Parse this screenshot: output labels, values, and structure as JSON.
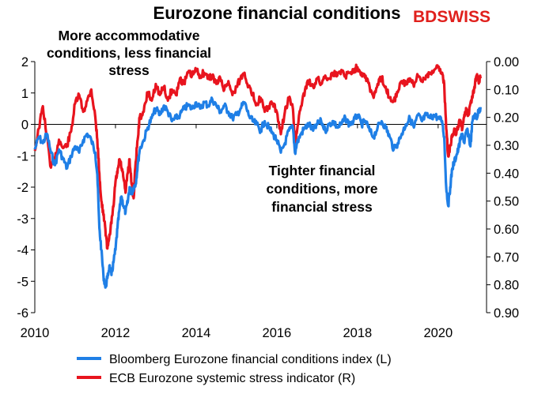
{
  "brand": {
    "logo_text": "BDSWISS",
    "logo_color": "#e0201c"
  },
  "chart_data": {
    "type": "line",
    "title": "Eurozone financial conditions",
    "annotations": [
      {
        "lines": [
          "More accommodative",
          "conditions, less financial",
          "stress"
        ]
      },
      {
        "lines": [
          "Tighter financial",
          "conditions, more",
          "financial stress"
        ]
      }
    ],
    "x_axis": {
      "range": [
        2010,
        2021.2
      ],
      "ticks": [
        "2010",
        "2012",
        "2014",
        "2016",
        "2018",
        "2020"
      ]
    },
    "y_left": {
      "range": [
        -6,
        2
      ],
      "ticks": [
        "2",
        "1",
        "0",
        "-1",
        "-2",
        "-3",
        "-4",
        "-5",
        "-6"
      ]
    },
    "y_right": {
      "range": [
        0.0,
        0.9
      ],
      "inverted": true,
      "ticks": [
        "0.00",
        "0.10",
        "0.20",
        "0.30",
        "0.40",
        "0.50",
        "0.60",
        "0.70",
        "0.80",
        "0.90"
      ]
    },
    "legend": {
      "placement": "bottom"
    },
    "series": [
      {
        "name": "Bloomberg Eurozone financial conditions index (L)",
        "axis": "left",
        "color": "#1f7fe6",
        "points": [
          [
            2010.0,
            -0.8
          ],
          [
            2010.1,
            -0.4
          ],
          [
            2010.2,
            -0.6
          ],
          [
            2010.3,
            -0.3
          ],
          [
            2010.4,
            -0.9
          ],
          [
            2010.5,
            -1.3
          ],
          [
            2010.6,
            -0.8
          ],
          [
            2010.7,
            -1.1
          ],
          [
            2010.8,
            -1.4
          ],
          [
            2010.9,
            -1.0
          ],
          [
            2011.0,
            -0.7
          ],
          [
            2011.1,
            -0.9
          ],
          [
            2011.2,
            -0.5
          ],
          [
            2011.3,
            -0.3
          ],
          [
            2011.4,
            -0.5
          ],
          [
            2011.5,
            -0.9
          ],
          [
            2011.55,
            -1.6
          ],
          [
            2011.6,
            -3.3
          ],
          [
            2011.65,
            -4.0
          ],
          [
            2011.7,
            -4.8
          ],
          [
            2011.75,
            -5.2
          ],
          [
            2011.8,
            -4.9
          ],
          [
            2011.85,
            -4.5
          ],
          [
            2011.9,
            -4.8
          ],
          [
            2011.95,
            -4.4
          ],
          [
            2012.0,
            -4.0
          ],
          [
            2012.05,
            -3.3
          ],
          [
            2012.1,
            -2.7
          ],
          [
            2012.15,
            -2.3
          ],
          [
            2012.2,
            -2.6
          ],
          [
            2012.25,
            -2.8
          ],
          [
            2012.3,
            -2.5
          ],
          [
            2012.35,
            -2.0
          ],
          [
            2012.4,
            -2.2
          ],
          [
            2012.45,
            -2.0
          ],
          [
            2012.5,
            -1.9
          ],
          [
            2012.55,
            -1.3
          ],
          [
            2012.6,
            -0.8
          ],
          [
            2012.7,
            -0.5
          ],
          [
            2012.8,
            -0.1
          ],
          [
            2012.9,
            0.2
          ],
          [
            2013.0,
            0.5
          ],
          [
            2013.1,
            0.3
          ],
          [
            2013.2,
            0.6
          ],
          [
            2013.3,
            0.4
          ],
          [
            2013.4,
            0.1
          ],
          [
            2013.5,
            0.2
          ],
          [
            2013.6,
            0.3
          ],
          [
            2013.7,
            0.5
          ],
          [
            2013.8,
            0.6
          ],
          [
            2013.9,
            0.5
          ],
          [
            2014.0,
            0.7
          ],
          [
            2014.1,
            0.5
          ],
          [
            2014.2,
            0.7
          ],
          [
            2014.3,
            0.6
          ],
          [
            2014.4,
            0.8
          ],
          [
            2014.5,
            0.6
          ],
          [
            2014.6,
            0.4
          ],
          [
            2014.7,
            0.6
          ],
          [
            2014.8,
            0.4
          ],
          [
            2014.9,
            0.2
          ],
          [
            2015.0,
            0.3
          ],
          [
            2015.1,
            0.5
          ],
          [
            2015.2,
            0.7
          ],
          [
            2015.3,
            0.3
          ],
          [
            2015.4,
            0.1
          ],
          [
            2015.5,
            0.0
          ],
          [
            2015.6,
            -0.2
          ],
          [
            2015.7,
            0.1
          ],
          [
            2015.8,
            -0.1
          ],
          [
            2015.9,
            -0.3
          ],
          [
            2016.0,
            -0.5
          ],
          [
            2016.1,
            -0.9
          ],
          [
            2016.2,
            -0.6
          ],
          [
            2016.3,
            -0.2
          ],
          [
            2016.4,
            -0.1
          ],
          [
            2016.45,
            -0.9
          ],
          [
            2016.5,
            -0.6
          ],
          [
            2016.6,
            -0.3
          ],
          [
            2016.7,
            -0.1
          ],
          [
            2016.8,
            0.0
          ],
          [
            2016.9,
            -0.2
          ],
          [
            2017.0,
            0.0
          ],
          [
            2017.1,
            0.1
          ],
          [
            2017.2,
            -0.2
          ],
          [
            2017.3,
            0.0
          ],
          [
            2017.4,
            0.1
          ],
          [
            2017.5,
            -0.1
          ],
          [
            2017.6,
            0.0
          ],
          [
            2017.7,
            0.2
          ],
          [
            2017.8,
            0.0
          ],
          [
            2017.9,
            0.1
          ],
          [
            2018.0,
            0.3
          ],
          [
            2018.1,
            0.0
          ],
          [
            2018.2,
            0.1
          ],
          [
            2018.3,
            -0.2
          ],
          [
            2018.4,
            -0.4
          ],
          [
            2018.5,
            -0.1
          ],
          [
            2018.6,
            0.1
          ],
          [
            2018.7,
            -0.1
          ],
          [
            2018.8,
            -0.4
          ],
          [
            2018.9,
            -0.8
          ],
          [
            2019.0,
            -0.6
          ],
          [
            2019.1,
            -0.3
          ],
          [
            2019.2,
            0.0
          ],
          [
            2019.3,
            0.2
          ],
          [
            2019.4,
            -0.1
          ],
          [
            2019.5,
            0.3
          ],
          [
            2019.6,
            0.1
          ],
          [
            2019.7,
            0.3
          ],
          [
            2019.8,
            0.2
          ],
          [
            2019.9,
            0.3
          ],
          [
            2020.0,
            0.2
          ],
          [
            2020.1,
            0.1
          ],
          [
            2020.15,
            -0.4
          ],
          [
            2020.2,
            -2.0
          ],
          [
            2020.25,
            -2.6
          ],
          [
            2020.3,
            -2.0
          ],
          [
            2020.35,
            -1.4
          ],
          [
            2020.4,
            -1.2
          ],
          [
            2020.45,
            -1.0
          ],
          [
            2020.5,
            -0.8
          ],
          [
            2020.55,
            -0.5
          ],
          [
            2020.6,
            -0.3
          ],
          [
            2020.65,
            -0.6
          ],
          [
            2020.7,
            -0.2
          ],
          [
            2020.75,
            -0.3
          ],
          [
            2020.8,
            -0.7
          ],
          [
            2020.85,
            0.1
          ],
          [
            2020.9,
            0.3
          ],
          [
            2020.95,
            0.2
          ],
          [
            2021.0,
            0.4
          ],
          [
            2021.05,
            0.55
          ]
        ]
      },
      {
        "name": "ECB Eurozone systemic stress indicator (R)",
        "axis": "right",
        "color": "#e8141e",
        "points": [
          [
            2010.0,
            0.32
          ],
          [
            2010.1,
            0.24
          ],
          [
            2010.2,
            0.16
          ],
          [
            2010.3,
            0.27
          ],
          [
            2010.4,
            0.38
          ],
          [
            2010.5,
            0.35
          ],
          [
            2010.6,
            0.28
          ],
          [
            2010.7,
            0.31
          ],
          [
            2010.8,
            0.3
          ],
          [
            2010.9,
            0.25
          ],
          [
            2011.0,
            0.15
          ],
          [
            2011.1,
            0.12
          ],
          [
            2011.2,
            0.18
          ],
          [
            2011.3,
            0.14
          ],
          [
            2011.4,
            0.1
          ],
          [
            2011.5,
            0.2
          ],
          [
            2011.55,
            0.28
          ],
          [
            2011.6,
            0.4
          ],
          [
            2011.65,
            0.5
          ],
          [
            2011.7,
            0.55
          ],
          [
            2011.75,
            0.6
          ],
          [
            2011.8,
            0.67
          ],
          [
            2011.85,
            0.62
          ],
          [
            2011.9,
            0.58
          ],
          [
            2011.95,
            0.52
          ],
          [
            2012.0,
            0.43
          ],
          [
            2012.05,
            0.4
          ],
          [
            2012.1,
            0.35
          ],
          [
            2012.15,
            0.38
          ],
          [
            2012.2,
            0.42
          ],
          [
            2012.25,
            0.47
          ],
          [
            2012.3,
            0.4
          ],
          [
            2012.35,
            0.35
          ],
          [
            2012.4,
            0.44
          ],
          [
            2012.45,
            0.49
          ],
          [
            2012.5,
            0.36
          ],
          [
            2012.55,
            0.28
          ],
          [
            2012.6,
            0.2
          ],
          [
            2012.7,
            0.18
          ],
          [
            2012.8,
            0.11
          ],
          [
            2012.9,
            0.14
          ],
          [
            2013.0,
            0.08
          ],
          [
            2013.1,
            0.12
          ],
          [
            2013.2,
            0.09
          ],
          [
            2013.3,
            0.14
          ],
          [
            2013.4,
            0.1
          ],
          [
            2013.5,
            0.12
          ],
          [
            2013.6,
            0.06
          ],
          [
            2013.7,
            0.08
          ],
          [
            2013.8,
            0.04
          ],
          [
            2013.9,
            0.05
          ],
          [
            2014.0,
            0.03
          ],
          [
            2014.1,
            0.05
          ],
          [
            2014.2,
            0.04
          ],
          [
            2014.3,
            0.06
          ],
          [
            2014.4,
            0.05
          ],
          [
            2014.5,
            0.08
          ],
          [
            2014.6,
            0.06
          ],
          [
            2014.7,
            0.1
          ],
          [
            2014.8,
            0.07
          ],
          [
            2014.9,
            0.12
          ],
          [
            2015.0,
            0.09
          ],
          [
            2015.1,
            0.06
          ],
          [
            2015.2,
            0.04
          ],
          [
            2015.3,
            0.09
          ],
          [
            2015.4,
            0.12
          ],
          [
            2015.5,
            0.15
          ],
          [
            2015.6,
            0.13
          ],
          [
            2015.7,
            0.18
          ],
          [
            2015.8,
            0.16
          ],
          [
            2015.9,
            0.15
          ],
          [
            2016.0,
            0.18
          ],
          [
            2016.1,
            0.26
          ],
          [
            2016.2,
            0.18
          ],
          [
            2016.3,
            0.13
          ],
          [
            2016.4,
            0.17
          ],
          [
            2016.45,
            0.29
          ],
          [
            2016.5,
            0.25
          ],
          [
            2016.6,
            0.16
          ],
          [
            2016.7,
            0.1
          ],
          [
            2016.8,
            0.07
          ],
          [
            2016.9,
            0.09
          ],
          [
            2017.0,
            0.06
          ],
          [
            2017.1,
            0.08
          ],
          [
            2017.2,
            0.05
          ],
          [
            2017.3,
            0.06
          ],
          [
            2017.4,
            0.04
          ],
          [
            2017.5,
            0.05
          ],
          [
            2017.6,
            0.03
          ],
          [
            2017.7,
            0.05
          ],
          [
            2017.8,
            0.04
          ],
          [
            2017.9,
            0.03
          ],
          [
            2018.0,
            0.02
          ],
          [
            2018.1,
            0.04
          ],
          [
            2018.2,
            0.05
          ],
          [
            2018.3,
            0.09
          ],
          [
            2018.4,
            0.13
          ],
          [
            2018.5,
            0.08
          ],
          [
            2018.6,
            0.06
          ],
          [
            2018.7,
            0.09
          ],
          [
            2018.8,
            0.13
          ],
          [
            2018.9,
            0.14
          ],
          [
            2019.0,
            0.11
          ],
          [
            2019.1,
            0.07
          ],
          [
            2019.2,
            0.08
          ],
          [
            2019.3,
            0.06
          ],
          [
            2019.4,
            0.09
          ],
          [
            2019.5,
            0.05
          ],
          [
            2019.6,
            0.07
          ],
          [
            2019.7,
            0.05
          ],
          [
            2019.8,
            0.04
          ],
          [
            2019.9,
            0.03
          ],
          [
            2020.0,
            0.02
          ],
          [
            2020.1,
            0.04
          ],
          [
            2020.15,
            0.08
          ],
          [
            2020.2,
            0.24
          ],
          [
            2020.25,
            0.34
          ],
          [
            2020.3,
            0.3
          ],
          [
            2020.35,
            0.27
          ],
          [
            2020.4,
            0.24
          ],
          [
            2020.45,
            0.26
          ],
          [
            2020.5,
            0.23
          ],
          [
            2020.55,
            0.21
          ],
          [
            2020.6,
            0.24
          ],
          [
            2020.65,
            0.19
          ],
          [
            2020.7,
            0.17
          ],
          [
            2020.75,
            0.19
          ],
          [
            2020.8,
            0.15
          ],
          [
            2020.85,
            0.13
          ],
          [
            2020.9,
            0.09
          ],
          [
            2020.95,
            0.05
          ],
          [
            2021.0,
            0.07
          ],
          [
            2021.05,
            0.06
          ]
        ]
      }
    ]
  }
}
